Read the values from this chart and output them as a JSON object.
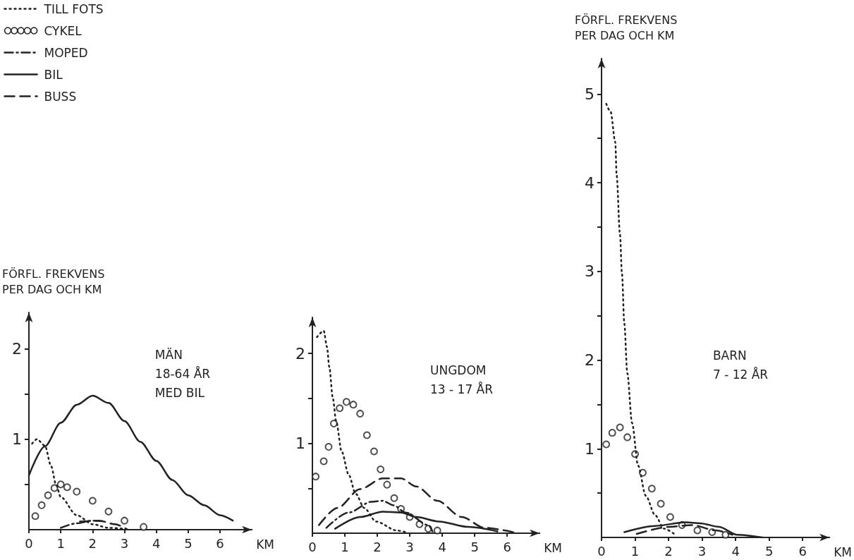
{
  "chart_data": [
    {
      "type": "line",
      "ylabel": "FÖRFL. FREKVENS\nPER DAG OCH KM",
      "xlabel": "KM",
      "annotations": [
        "MÄN\n18-64 ÅR\nMED BIL"
      ],
      "legend": "top left",
      "xlim": [
        0,
        7
      ],
      "xticks": [
        0,
        1,
        2,
        3,
        4,
        5,
        6
      ],
      "ylim": [
        0,
        2.4
      ],
      "yticks": [
        {
          "value": 0.5,
          "label": null
        },
        1,
        {
          "value": 1.5,
          "label": null
        },
        2
      ],
      "series": [
        {
          "name": "TILL FOTS",
          "color": "#222222",
          "line_style": "dotted",
          "x": [
            0.1,
            0.25,
            0.5,
            0.7,
            0.85,
            1,
            1.5,
            2,
            2.5,
            3
          ],
          "values": [
            0.95,
            1.0,
            0.93,
            0.7,
            0.5,
            0.36,
            0.16,
            0.06,
            0.02,
            0.01
          ]
        },
        {
          "name": "CYKEL",
          "type": "scatter",
          "marker": "circle",
          "color": "#222222",
          "x": [
            0.2,
            0.4,
            0.6,
            0.8,
            1,
            1.2,
            1.5,
            2,
            2.5,
            3,
            3.6
          ],
          "values": [
            0.15,
            0.27,
            0.38,
            0.46,
            0.5,
            0.47,
            0.42,
            0.32,
            0.2,
            0.1,
            0.03
          ]
        },
        {
          "name": "MOPED",
          "color": "#222222",
          "line_style": "dashdot",
          "x": [
            1,
            1.5,
            2,
            2.4
          ],
          "values": [
            0.02,
            0.07,
            0.1,
            0.09
          ]
        },
        {
          "name": "BIL",
          "color": "#222222",
          "line_style": "solid",
          "x": [
            0,
            0.5,
            1,
            1.5,
            2,
            2.5,
            3,
            3.5,
            4,
            4.5,
            5,
            5.5,
            6,
            6.4
          ],
          "values": [
            0.6,
            0.92,
            1.18,
            1.38,
            1.48,
            1.4,
            1.2,
            0.97,
            0.76,
            0.55,
            0.38,
            0.27,
            0.16,
            0.1
          ]
        },
        {
          "name": "BUSS",
          "color": "#222222",
          "line_style": "dashed",
          "x": [
            1.6,
            2.2,
            2.7,
            3.1
          ],
          "values": [
            0.09,
            0.1,
            0.06,
            0
          ]
        }
      ]
    },
    {
      "type": "line",
      "xlabel": "KM",
      "annotations": [
        "UNGDOM\n13 - 17 ÅR"
      ],
      "xlim": [
        0,
        7
      ],
      "xticks": [
        0,
        1,
        2,
        3,
        4,
        5,
        6
      ],
      "ylim": [
        0,
        2.4
      ],
      "yticks": [
        {
          "value": 0.5,
          "label": null
        },
        1,
        {
          "value": 1.5,
          "label": null
        },
        2
      ],
      "series": [
        {
          "color": "#222222",
          "line_style": "dotted",
          "x": [
            0.14,
            0.35,
            0.45,
            0.52,
            0.63,
            0.73,
            0.9,
            1.12,
            1.33,
            1.6,
            1.96,
            2.6,
            2.9
          ],
          "values": [
            2.18,
            2.25,
            2.07,
            1.85,
            1.5,
            1.25,
            0.91,
            0.65,
            0.44,
            0.28,
            0.13,
            0.03,
            0.01
          ]
        },
        {
          "type": "scatter",
          "marker": "circle",
          "color": "#222222",
          "x": [
            0.1,
            0.35,
            0.5,
            0.66,
            0.84,
            1.05,
            1.26,
            1.47,
            1.68,
            1.9,
            2.1,
            2.3,
            2.52,
            2.73,
            3.0,
            3.3,
            3.57,
            3.85
          ],
          "values": [
            0.63,
            0.8,
            0.96,
            1.22,
            1.39,
            1.46,
            1.43,
            1.33,
            1.09,
            0.91,
            0.71,
            0.54,
            0.39,
            0.27,
            0.18,
            0.1,
            0.05,
            0.03
          ]
        },
        {
          "color": "#222222",
          "line_style": "dashdot",
          "x": [
            0.43,
            1.12,
            1.82,
            2.17,
            2.5,
            2.87,
            3.57,
            3.7
          ],
          "values": [
            0.06,
            0.23,
            0.35,
            0.36,
            0.31,
            0.23,
            0.09,
            0.02
          ]
        },
        {
          "color": "#222222",
          "line_style": "solid",
          "x": [
            0.7,
            1.47,
            2.17,
            2.73,
            3.2,
            3.9,
            4.8,
            5.7
          ],
          "values": [
            0.05,
            0.18,
            0.24,
            0.23,
            0.18,
            0.13,
            0.07,
            0.02
          ]
        },
        {
          "color": "#222222",
          "line_style": "dashed",
          "x": [
            0.2,
            0.77,
            1.47,
            2.17,
            2.73,
            3.2,
            3.85,
            4.6,
            5.3,
            6.2
          ],
          "values": [
            0.09,
            0.28,
            0.49,
            0.61,
            0.61,
            0.52,
            0.36,
            0.18,
            0.06,
            0.01
          ]
        }
      ]
    },
    {
      "type": "line",
      "ylabel": "FÖRFL. FREKVENS\nPER DAG OCH KM",
      "xlabel": "KM",
      "annotations": [
        "BARN\n7 - 12 ÅR"
      ],
      "xlim": [
        0,
        6.8
      ],
      "xticks": [
        0,
        1,
        2,
        3,
        4,
        5,
        6
      ],
      "ylim": [
        0,
        5.4
      ],
      "yticks": [
        {
          "value": 0.5,
          "label": null
        },
        1,
        {
          "value": 1.5,
          "label": null
        },
        2,
        {
          "value": 2.5,
          "label": null
        },
        3,
        {
          "value": 3.5,
          "label": null
        },
        4,
        {
          "value": 4.5,
          "label": null
        },
        5
      ],
      "series": [
        {
          "color": "#222222",
          "line_style": "dotted",
          "x": [
            0.14,
            0.27,
            0.41,
            0.45,
            0.55,
            0.61,
            0.68,
            0.77,
            0.91,
            1.09,
            1.32,
            1.6,
            1.86,
            2.2
          ],
          "values": [
            4.89,
            4.8,
            4.46,
            4.09,
            3.42,
            2.97,
            2.41,
            1.85,
            1.29,
            0.81,
            0.47,
            0.25,
            0.1,
            0.03
          ]
        },
        {
          "type": "scatter",
          "marker": "circle",
          "color": "#222222",
          "x": [
            0.14,
            0.32,
            0.55,
            0.77,
            1.0,
            1.23,
            1.5,
            1.77,
            2.05,
            2.4,
            2.86,
            3.3,
            3.7
          ],
          "values": [
            1.05,
            1.18,
            1.24,
            1.13,
            0.94,
            0.73,
            0.55,
            0.38,
            0.23,
            0.14,
            0.08,
            0.06,
            0.03
          ]
        },
        {
          "color": "#222222",
          "line_style": "solid",
          "x": [
            0.68,
            1.6,
            2.5,
            2.95,
            3.5,
            4.05,
            4.8
          ],
          "values": [
            0.06,
            0.13,
            0.17,
            0.16,
            0.12,
            0.03,
            0
          ]
        },
        {
          "color": "#222222",
          "line_style": "dashed",
          "x": [
            1.05,
            2.05,
            2.7,
            3.4,
            3.9
          ],
          "values": [
            0.04,
            0.12,
            0.14,
            0.08,
            0.03
          ]
        }
      ]
    }
  ]
}
